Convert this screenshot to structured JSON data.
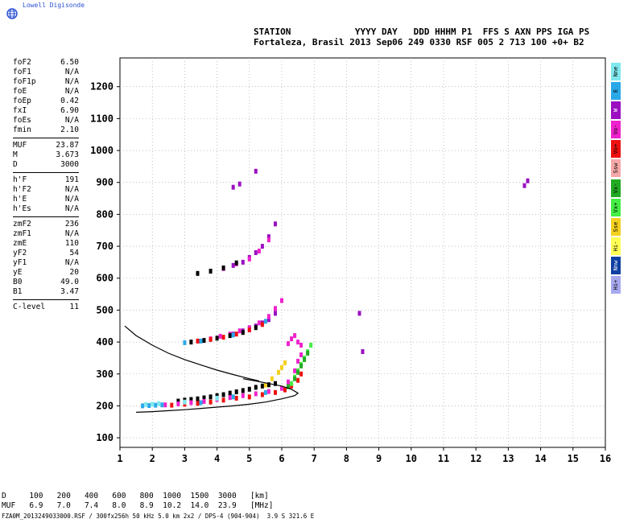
{
  "brand": {
    "name": "Lowell Digisonde",
    "logo_icon": "globe-icon",
    "color": "#2a4fd1"
  },
  "header": {
    "labels_line": "STATION            YYYY DAY   DDD HHHM P1  FFS S AXN PPS IGA PS",
    "values_line": "Fortaleza, Brasil 2013 Sep06 249 0330 RSF 005 2 713 100 +0+ B2"
  },
  "params": [
    [
      {
        "k": "foF2",
        "v": "6.50"
      },
      {
        "k": "foF1",
        "v": "N/A"
      },
      {
        "k": "foF1p",
        "v": "N/A"
      },
      {
        "k": "foE",
        "v": "N/A"
      },
      {
        "k": "foEp",
        "v": "0.42"
      },
      {
        "k": "fxI",
        "v": "6.90"
      },
      {
        "k": "foEs",
        "v": "N/A"
      },
      {
        "k": "fmin",
        "v": "2.10"
      }
    ],
    [
      {
        "k": "MUF",
        "v": "23.87"
      },
      {
        "k": "M",
        "v": "3.673"
      },
      {
        "k": "D",
        "v": "3000"
      }
    ],
    [
      {
        "k": "h'F",
        "v": "191"
      },
      {
        "k": "h'F2",
        "v": "N/A"
      },
      {
        "k": "h'E",
        "v": "N/A"
      },
      {
        "k": "h'Es",
        "v": "N/A"
      }
    ],
    [
      {
        "k": "zmF2",
        "v": "236"
      },
      {
        "k": "zmF1",
        "v": "N/A"
      },
      {
        "k": "zmE",
        "v": "110"
      },
      {
        "k": "yF2",
        "v": "54"
      },
      {
        "k": "yF1",
        "v": "N/A"
      },
      {
        "k": "yE",
        "v": "20"
      },
      {
        "k": "B0",
        "v": "49.0"
      },
      {
        "k": "B1",
        "v": "3.47"
      }
    ],
    [
      {
        "k": "C-level",
        "v": "11"
      }
    ]
  ],
  "legend": [
    {
      "label": "Nne",
      "color": "#7fe8ee"
    },
    {
      "label": "E",
      "color": "#2aa8e8"
    },
    {
      "label": "W",
      "color": "#9a10c0"
    },
    {
      "label": "Vo-",
      "color": "#ee22cc"
    },
    {
      "label": "Vo+",
      "color": "#ee1111"
    },
    {
      "label": "Ssw",
      "color": "#f4a8a8"
    },
    {
      "label": "Vx-",
      "color": "#22aa22"
    },
    {
      "label": "Vx+",
      "color": "#44ee44"
    },
    {
      "label": "Sse",
      "color": "#f4d020"
    },
    {
      "label": "Hi-",
      "color": "#ffff55"
    },
    {
      "label": "Nnw",
      "color": "#1040a0"
    },
    {
      "label": "Hi+",
      "color": "#a8a8f0"
    }
  ],
  "footer": {
    "d_line": "D     100   200   400   600   800  1000  1500  3000   [km]",
    "muf_line": "MUF   6.9   7.0   7.4   8.0   8.9  10.2  14.0  23.9   [MHz]",
    "filename": "FZA0M_2013249033000.RSF / 300fx256h 50 kHz 5.0 km 2x2 / DPS-4 (904-904)  3.9 S 321.6 E"
  },
  "chart_data": {
    "type": "scatter",
    "x_ticks": [
      "1",
      "2",
      "3",
      "4",
      "5",
      "6",
      "7",
      "8",
      "9",
      "10",
      "11",
      "12",
      "13",
      "14",
      "15",
      "16"
    ],
    "y_ticks": [
      "100",
      "200",
      "300",
      "400",
      "500",
      "600",
      "700",
      "800",
      "900",
      "1000",
      "1100",
      "1200"
    ],
    "xlim": [
      1,
      16
    ],
    "ylim": [
      70,
      1290
    ],
    "grid": "dotted",
    "echo_traces": [
      {
        "name_color": "#000000",
        "points": [
          [
            2.8,
            215
          ],
          [
            3.0,
            218
          ],
          [
            3.2,
            220
          ],
          [
            3.4,
            222
          ],
          [
            3.6,
            225
          ],
          [
            3.8,
            228
          ],
          [
            4.0,
            232
          ],
          [
            4.2,
            235
          ],
          [
            4.4,
            240
          ],
          [
            4.6,
            244
          ],
          [
            4.8,
            248
          ],
          [
            5.0,
            252
          ],
          [
            5.2,
            258
          ],
          [
            5.4,
            262
          ],
          [
            5.6,
            266
          ],
          [
            5.8,
            270
          ]
        ]
      },
      {
        "name_color": "#ee1111",
        "points": [
          [
            2.6,
            202
          ],
          [
            3.0,
            205
          ],
          [
            3.4,
            208
          ],
          [
            3.8,
            212
          ],
          [
            4.2,
            218
          ],
          [
            4.6,
            224
          ],
          [
            5.0,
            228
          ],
          [
            5.4,
            235
          ],
          [
            5.8,
            242
          ],
          [
            6.1,
            250
          ],
          [
            6.3,
            262
          ],
          [
            6.5,
            280
          ],
          [
            6.6,
            300
          ]
        ]
      },
      {
        "name_color": "#ee22cc",
        "points": [
          [
            2.4,
            203
          ],
          [
            2.8,
            206
          ],
          [
            3.2,
            210
          ],
          [
            3.6,
            214
          ],
          [
            4.0,
            220
          ],
          [
            4.4,
            226
          ],
          [
            4.8,
            232
          ],
          [
            5.2,
            238
          ],
          [
            5.6,
            245
          ],
          [
            6.0,
            255
          ],
          [
            6.2,
            275
          ],
          [
            6.4,
            310
          ],
          [
            6.5,
            340
          ],
          [
            6.6,
            360
          ]
        ]
      },
      {
        "name_color": "#44ee44",
        "points": [
          [
            6.3,
            270
          ],
          [
            6.4,
            290
          ],
          [
            6.5,
            310
          ],
          [
            6.6,
            330
          ],
          [
            6.7,
            350
          ],
          [
            6.8,
            370
          ],
          [
            6.9,
            390
          ]
        ]
      },
      {
        "name_color": "#22aa22",
        "points": [
          [
            6.2,
            260
          ],
          [
            6.4,
            285
          ],
          [
            6.5,
            305
          ],
          [
            6.6,
            325
          ],
          [
            6.7,
            345
          ],
          [
            6.8,
            365
          ]
        ]
      },
      {
        "name_color": "#2aa8e8",
        "points": [
          [
            1.7,
            200
          ],
          [
            1.9,
            201
          ],
          [
            2.1,
            202
          ],
          [
            2.3,
            203
          ],
          [
            3.5,
            210
          ],
          [
            4.5,
            228
          ],
          [
            5.5,
            242
          ]
        ]
      },
      {
        "name_color": "#7fe8ee",
        "points": [
          [
            1.8,
            204
          ],
          [
            2.0,
            205
          ],
          [
            2.2,
            207
          ],
          [
            3.0,
            212
          ],
          [
            4.0,
            224
          ]
        ]
      },
      {
        "name_color": "#f4d020",
        "points": [
          [
            5.5,
            265
          ],
          [
            5.7,
            285
          ],
          [
            5.9,
            305
          ],
          [
            6.0,
            320
          ],
          [
            6.1,
            335
          ]
        ]
      },
      {
        "name_color": "#9a10c0",
        "points": [
          [
            4.5,
            425
          ],
          [
            4.8,
            435
          ],
          [
            5.0,
            440
          ],
          [
            5.2,
            450
          ],
          [
            5.4,
            460
          ],
          [
            5.6,
            470
          ],
          [
            5.8,
            490
          ]
        ]
      },
      {
        "name_color": "#ee22cc",
        "points": [
          [
            3.8,
            410
          ],
          [
            4.1,
            418
          ],
          [
            4.4,
            425
          ],
          [
            4.7,
            435
          ],
          [
            5.0,
            445
          ],
          [
            5.3,
            460
          ],
          [
            5.6,
            480
          ],
          [
            5.8,
            505
          ],
          [
            6.0,
            530
          ]
        ]
      },
      {
        "name_color": "#ee1111",
        "points": [
          [
            3.4,
            403
          ],
          [
            3.8,
            408
          ],
          [
            4.2,
            415
          ],
          [
            4.6,
            425
          ],
          [
            5.0,
            438
          ],
          [
            5.4,
            455
          ]
        ]
      },
      {
        "name_color": "#000000",
        "points": [
          [
            3.2,
            400
          ],
          [
            3.6,
            405
          ],
          [
            4.0,
            412
          ],
          [
            4.4,
            420
          ],
          [
            4.8,
            430
          ],
          [
            5.2,
            445
          ]
        ]
      },
      {
        "name_color": "#2aa8e8",
        "points": [
          [
            3.0,
            398
          ],
          [
            3.5,
            403
          ],
          [
            4.5,
            422
          ],
          [
            5.5,
            465
          ]
        ]
      },
      {
        "name_color": "#9a10c0",
        "points": [
          [
            4.5,
            640
          ],
          [
            4.8,
            650
          ],
          [
            5.0,
            665
          ],
          [
            5.2,
            680
          ],
          [
            5.4,
            700
          ],
          [
            5.6,
            730
          ],
          [
            5.8,
            770
          ]
        ]
      },
      {
        "name_color": "#ee22cc",
        "points": [
          [
            4.2,
            630
          ],
          [
            4.6,
            645
          ],
          [
            5.0,
            660
          ],
          [
            5.3,
            685
          ],
          [
            5.6,
            720
          ]
        ]
      },
      {
        "name_color": "#000000",
        "points": [
          [
            3.4,
            615
          ],
          [
            3.8,
            622
          ],
          [
            4.2,
            632
          ],
          [
            4.6,
            648
          ]
        ]
      },
      {
        "name_color": "#9a10c0",
        "points": [
          [
            4.5,
            885
          ],
          [
            4.7,
            895
          ],
          [
            5.2,
            935
          ],
          [
            8.4,
            490
          ],
          [
            8.5,
            370
          ],
          [
            13.5,
            890
          ],
          [
            13.6,
            905
          ]
        ]
      },
      {
        "name_color": "#ee22cc",
        "points": [
          [
            6.2,
            395
          ],
          [
            6.3,
            410
          ],
          [
            6.4,
            420
          ],
          [
            6.5,
            400
          ],
          [
            6.6,
            390
          ]
        ]
      }
    ],
    "model_curves": [
      {
        "points": [
          [
            1.15,
            450
          ],
          [
            1.5,
            420
          ],
          [
            2.0,
            390
          ],
          [
            2.5,
            365
          ],
          [
            3.0,
            345
          ],
          [
            3.5,
            328
          ],
          [
            4.0,
            312
          ],
          [
            4.5,
            298
          ],
          [
            5.0,
            285
          ],
          [
            5.3,
            278
          ]
        ]
      },
      {
        "points": [
          [
            1.5,
            180
          ],
          [
            2.0,
            182
          ],
          [
            2.5,
            185
          ],
          [
            3.0,
            188
          ],
          [
            3.5,
            192
          ],
          [
            4.0,
            196
          ],
          [
            4.5,
            200
          ],
          [
            5.0,
            205
          ],
          [
            5.5,
            212
          ],
          [
            6.0,
            222
          ],
          [
            6.4,
            232
          ],
          [
            6.5,
            240
          ],
          [
            6.3,
            252
          ],
          [
            6.0,
            262
          ],
          [
            5.6,
            270
          ],
          [
            5.2,
            278
          ],
          [
            4.8,
            285
          ]
        ]
      }
    ]
  }
}
